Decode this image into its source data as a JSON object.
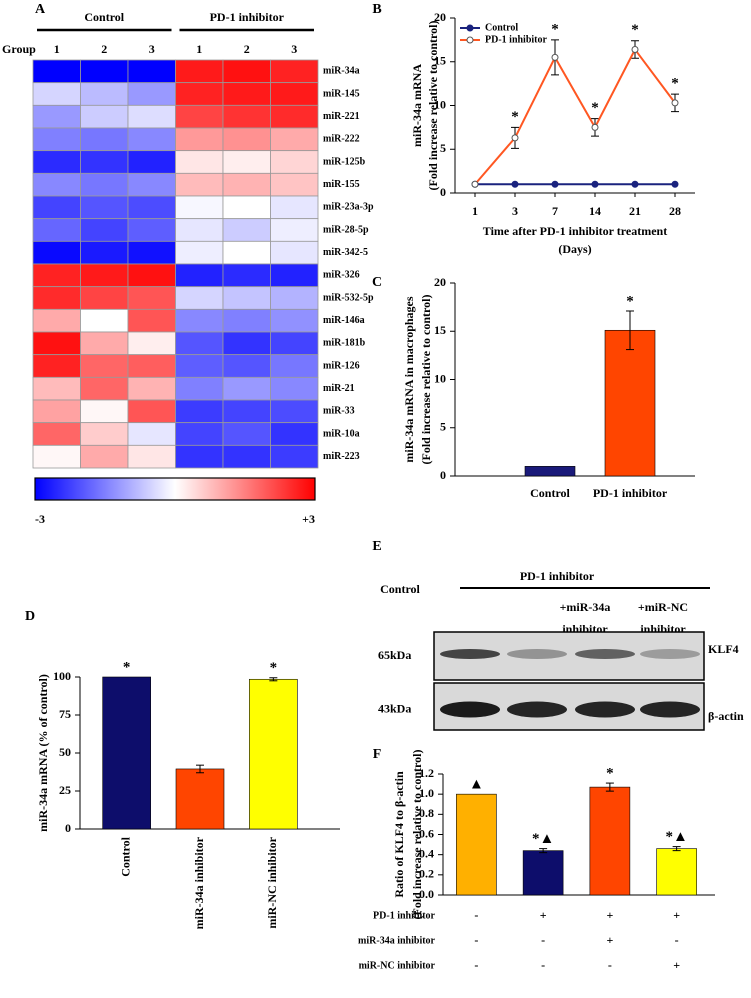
{
  "chart_data": [
    {
      "type": "heatmap",
      "panel": "A",
      "column_title": "Group",
      "groups": [
        "Control",
        "PD-1 inhibitor"
      ],
      "columns": [
        "1",
        "2",
        "3",
        "1",
        "2",
        "3"
      ],
      "rows": [
        "miR-34a",
        "miR-145",
        "miR-221",
        "miR-222",
        "miR-125b",
        "miR-155",
        "miR-23a-3p",
        "miR-28-5p",
        "miR-342-5",
        "miR-326",
        "miR-532-5p",
        "miR-146a",
        "miR-181b",
        "miR-126",
        "miR-21",
        "miR-33",
        "miR-10a",
        "miR-223"
      ],
      "values": [
        [
          -3,
          -3,
          -3,
          2.7,
          2.8,
          2.6
        ],
        [
          -0.5,
          -0.8,
          -1.2,
          2.6,
          2.7,
          2.7
        ],
        [
          -1.2,
          -0.6,
          -0.4,
          2.2,
          2.4,
          2.5
        ],
        [
          -1.5,
          -1.6,
          -1.4,
          1.2,
          1.3,
          1.0
        ],
        [
          -2.5,
          -2.4,
          -2.6,
          0.3,
          0.2,
          0.5
        ],
        [
          -1.4,
          -1.6,
          -1.4,
          0.8,
          0.9,
          0.7
        ],
        [
          -2.2,
          -2.0,
          -2.1,
          -0.1,
          0.0,
          -0.3
        ],
        [
          -1.8,
          -2.2,
          -1.9,
          -0.3,
          -0.6,
          -0.2
        ],
        [
          -2.9,
          -2.7,
          -2.8,
          -0.2,
          0.0,
          -0.3
        ],
        [
          2.6,
          2.7,
          2.8,
          -2.6,
          -2.5,
          -2.6
        ],
        [
          2.5,
          2.2,
          2.0,
          -0.5,
          -0.7,
          -0.9
        ],
        [
          1.0,
          0.0,
          2.0,
          -1.4,
          -1.5,
          -1.3
        ],
        [
          2.8,
          1.0,
          0.2,
          -2.0,
          -2.4,
          -2.2
        ],
        [
          2.6,
          1.8,
          1.9,
          -1.9,
          -2.0,
          -1.6
        ],
        [
          0.8,
          1.8,
          0.9,
          -1.5,
          -1.2,
          -1.4
        ],
        [
          1.1,
          0.1,
          2.0,
          -2.3,
          -2.2,
          -2.1
        ],
        [
          1.8,
          0.6,
          -0.3,
          -2.2,
          -2.0,
          -2.4
        ],
        [
          0.1,
          1.0,
          0.3,
          -2.4,
          -2.4,
          -2.3
        ]
      ],
      "clim": [
        -3,
        3
      ],
      "cticks": [
        -3,
        {
          "value": 3,
          "label": "+3"
        }
      ],
      "colors": [
        "#0000ff",
        "#ffffff",
        "#ff0000"
      ]
    },
    {
      "type": "line",
      "panel": "B",
      "categories": [
        "1",
        "3",
        "7",
        "14",
        "21",
        "28"
      ],
      "x_label": [
        "Time after PD-1 inhibitor treatment",
        "(Days)"
      ],
      "y_label": [
        "miR-34a mRNA",
        "(Fold increase relative to control)"
      ],
      "ylim": [
        0,
        20
      ],
      "yticks": [
        0,
        5,
        10,
        15,
        20
      ],
      "legend": "upper left",
      "series": [
        {
          "name": "Control",
          "color": "#1a237e",
          "marker": "filled",
          "values": [
            1,
            1,
            1,
            1,
            1,
            1
          ]
        },
        {
          "name": "PD-1 inhibitor",
          "color": "#ff5722",
          "marker": "open",
          "values": [
            1,
            6.3,
            15.5,
            7.5,
            16.4,
            10.3
          ],
          "errors": [
            0,
            1.2,
            2,
            1,
            1,
            1
          ],
          "significance": [
            null,
            "*",
            "*",
            "*",
            "*",
            "*"
          ]
        }
      ]
    },
    {
      "type": "bar",
      "panel": "C",
      "categories": [
        "Control",
        "PD-1 inhibitor"
      ],
      "values": [
        1,
        15.1
      ],
      "errors": [
        0,
        2
      ],
      "colors": [
        "#1a1a7a",
        "#ff4500"
      ],
      "significance": [
        null,
        "*"
      ],
      "y_label": [
        "miR-34a mRNA in macrophages",
        "(Fold increase relative to control)"
      ],
      "ylim": [
        0,
        20
      ],
      "yticks": [
        0,
        5,
        10,
        15,
        20
      ]
    },
    {
      "type": "bar",
      "panel": "D",
      "categories": [
        "Control",
        "miR-34a inhibitor",
        "miR-NC inhibitor"
      ],
      "values": [
        100,
        39.5,
        98.5
      ],
      "errors": [
        0,
        2.5,
        1
      ],
      "colors": [
        "#0d0d6b",
        "#ff4500",
        "#ffff00"
      ],
      "significance": [
        "*",
        null,
        "*"
      ],
      "y_label": [
        "miR-34a mRNA (% of control)"
      ],
      "ylim": [
        0,
        100
      ],
      "yticks": [
        0,
        25,
        50,
        75,
        100
      ]
    },
    {
      "type": "bar",
      "panel": "F",
      "values": [
        1.0,
        0.44,
        1.07,
        0.46
      ],
      "errors": [
        0,
        0.02,
        0.04,
        0.02
      ],
      "colors": [
        "#ffb000",
        "#0d0d6b",
        "#ff4500",
        "#ffff00"
      ],
      "significance": [
        "▲",
        "*▲",
        "*",
        "*▲"
      ],
      "y_label": [
        "Ratio of KLF4 to β-actin",
        "(Fold increase relative to control)"
      ],
      "ylim": [
        0,
        1.2
      ],
      "yticks": [
        {
          "value": 0,
          "label": "0.0"
        },
        0.2,
        0.4,
        0.6,
        0.8,
        {
          "value": 1,
          "label": "1.0"
        },
        1.2
      ],
      "table": [
        {
          "label": "PD-1 inhibitor",
          "cells": [
            "-",
            "+",
            "+",
            "+"
          ]
        },
        {
          "label": "miR-34a inhibitor",
          "cells": [
            "-",
            "-",
            "+",
            "-"
          ]
        },
        {
          "label": "miR-NC inhibitor",
          "cells": [
            "-",
            "-",
            "-",
            "+"
          ]
        }
      ]
    }
  ],
  "blot": {
    "panel": "E",
    "header": "PD-1 inhibitor",
    "lanes": [
      [
        "Control"
      ],
      [
        "+miR-34a",
        "inhibitor"
      ],
      [
        "+miR-NC",
        "inhibitor"
      ]
    ],
    "rows": [
      {
        "size": "65kDa",
        "protein": "KLF4"
      },
      {
        "size": "43kDa",
        "protein": "β-actin"
      }
    ]
  }
}
